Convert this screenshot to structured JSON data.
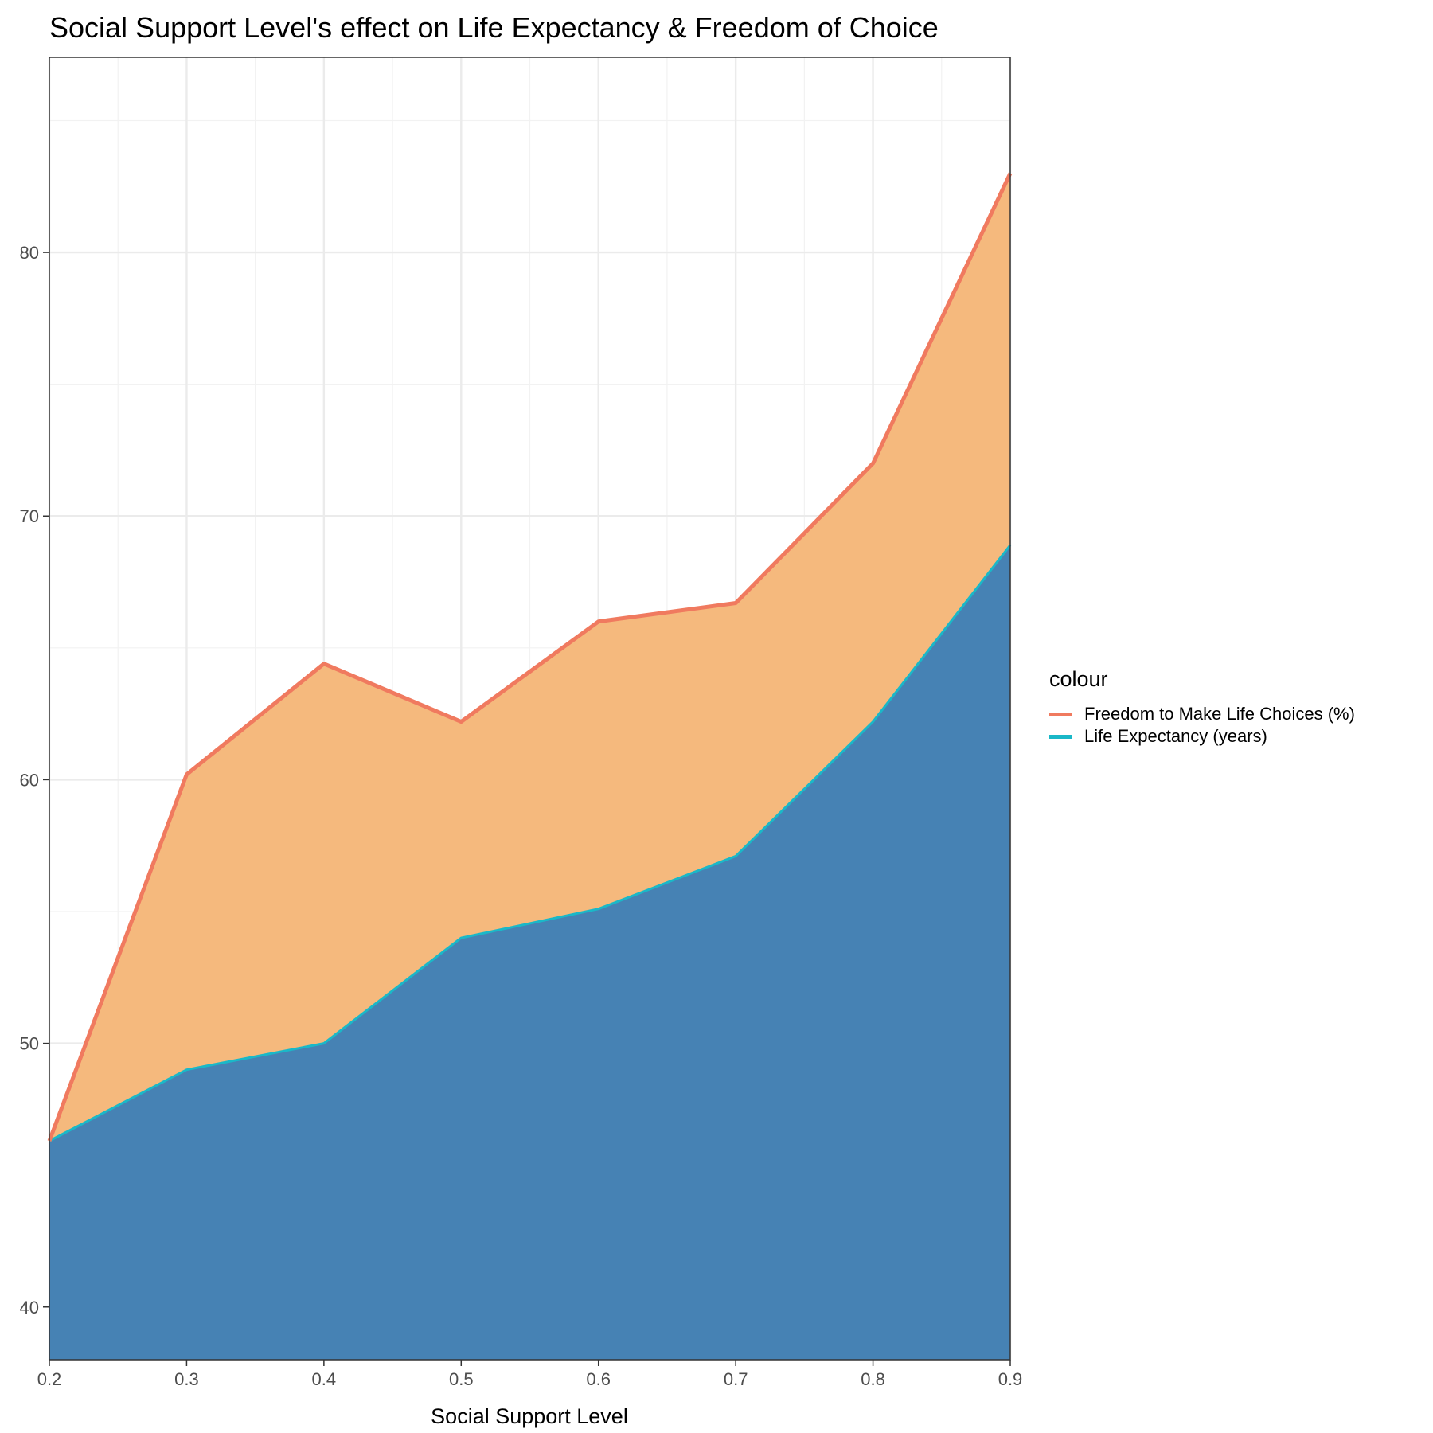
{
  "title": "Social Support Level's effect on Life Expectancy & Freedom of Choice",
  "chart_data": {
    "type": "area",
    "title": "Social Support Level's effect on Life Expectancy & Freedom of Choice",
    "xlabel": "Social Support Level",
    "ylabel": "",
    "x": [
      0.2,
      0.3,
      0.4,
      0.5,
      0.6,
      0.7,
      0.8,
      0.9
    ],
    "x_ticks": [
      "0.2",
      "0.3",
      "0.4",
      "0.5",
      "0.6",
      "0.7",
      "0.8",
      "0.9"
    ],
    "y_ticks": [
      "40",
      "50",
      "60",
      "70",
      "80"
    ],
    "xlim": [
      0.2,
      0.9
    ],
    "ylim": [
      38,
      87.4
    ],
    "grid": true,
    "legend_title": "colour",
    "legend_position": "right",
    "series": [
      {
        "name": "Freedom to Make Life Choices (%)",
        "line_color": "#F07A5F",
        "fill_color": "#F5B97D",
        "values": [
          46.3,
          60.2,
          64.4,
          62.2,
          66.0,
          66.7,
          72.0,
          83.0
        ]
      },
      {
        "name": "Life Expectancy (years)",
        "line_color": "#1AB8C8",
        "fill_color": "#4682B4",
        "values": [
          46.3,
          49.0,
          50.0,
          54.0,
          55.1,
          57.1,
          62.2,
          68.9
        ]
      }
    ]
  }
}
